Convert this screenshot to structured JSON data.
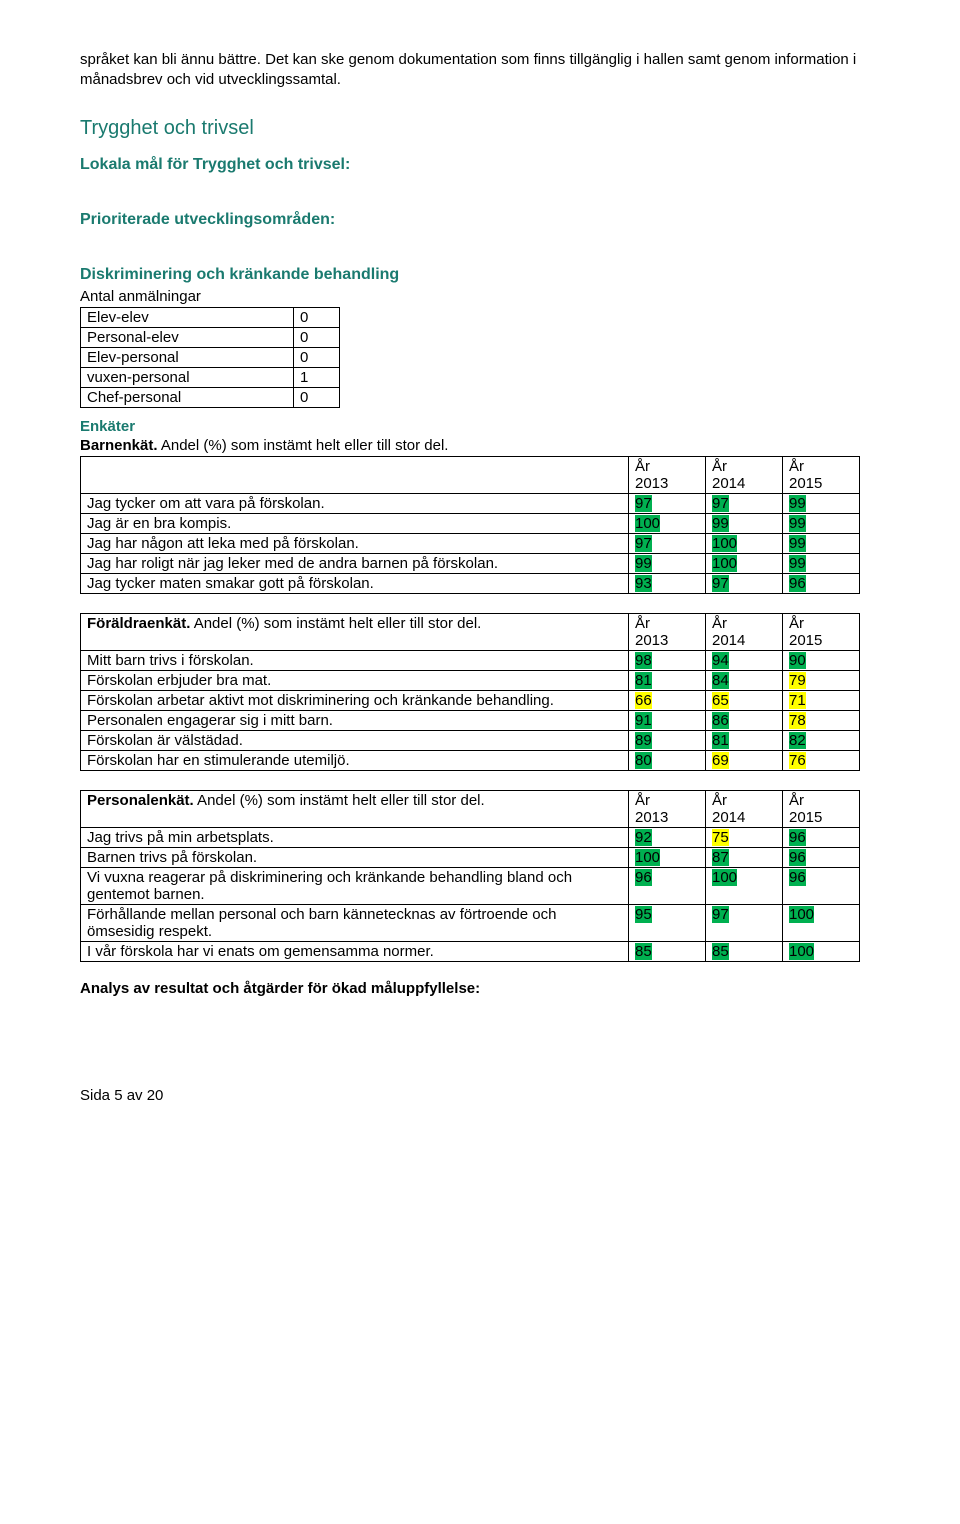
{
  "intro": {
    "p1": "språket kan bli ännu bättre. Det kan ske genom dokumentation som finns tillgänglig i hallen samt genom information i månadsbrev och vid utvecklingssamtal."
  },
  "heading_trygghet": "Trygghet och trivsel",
  "subheading_lokala": "Lokala mål för Trygghet och trivsel:",
  "subheading_prioriterade": "Prioriterade utvecklingsområden:",
  "subheading_diskriminering": "Diskriminering och kränkande behandling",
  "label_anmalningar": "Antal anmälningar",
  "anmalningar": {
    "rows": [
      {
        "label": "Elev-elev",
        "value": "0"
      },
      {
        "label": "Personal-elev",
        "value": "0"
      },
      {
        "label": "Elev-personal",
        "value": "0"
      },
      {
        "label": "vuxen-personal",
        "value": "1"
      },
      {
        "label": "Chef-personal",
        "value": "0"
      }
    ]
  },
  "subheading_enkater": "Enkäter",
  "years": {
    "y1": "År\n2013",
    "y2": "År\n2014",
    "y3": "År\n2015"
  },
  "barnenkat": {
    "title_bold": "Barnenkät.",
    "title_rest": " Andel (%) som instämt helt eller till stor del.",
    "rows": [
      {
        "label": " Jag tycker om att vara på förskolan.",
        "v": [
          "97",
          "97",
          "99"
        ],
        "hl": [
          "hl-green",
          "hl-green",
          "hl-green"
        ]
      },
      {
        "label": "Jag är en bra kompis.",
        "v": [
          "100",
          "99",
          "99"
        ],
        "hl": [
          "hl-green",
          "hl-green",
          "hl-green"
        ]
      },
      {
        "label": "Jag har någon att leka med på förskolan.",
        "v": [
          "97",
          "100",
          "99"
        ],
        "hl": [
          "hl-green",
          "hl-green",
          "hl-green"
        ]
      },
      {
        "label": "  Jag har roligt när jag leker med de andra barnen på förskolan.",
        "v": [
          "99",
          "100",
          "99"
        ],
        "hl": [
          "hl-green",
          "hl-green",
          "hl-green"
        ]
      },
      {
        "label": "  Jag tycker maten smakar gott på förskolan.",
        "v": [
          "93",
          "97",
          "96"
        ],
        "hl": [
          "hl-green",
          "hl-green",
          "hl-green"
        ]
      }
    ]
  },
  "foraldraenkat": {
    "title_bold": "Föräldraenkät.",
    "title_rest": " Andel (%) som instämt helt eller till stor del.",
    "rows": [
      {
        "label": " Mitt barn trivs i förskolan.",
        "v": [
          "98",
          "94",
          "90"
        ],
        "hl": [
          "hl-green",
          "hl-green",
          "hl-green"
        ]
      },
      {
        "label": " Förskolan erbjuder bra mat.",
        "v": [
          "81",
          "84",
          "79"
        ],
        "hl": [
          "hl-green",
          "hl-green",
          "hl-yellow"
        ]
      },
      {
        "label": " Förskolan arbetar aktivt mot diskriminering och kränkande behandling.",
        "v": [
          "66",
          "65",
          "71"
        ],
        "hl": [
          "hl-yellow",
          "hl-yellow",
          "hl-yellow"
        ]
      },
      {
        "label": " Personalen engagerar sig i mitt barn.",
        "v": [
          "91",
          "86",
          "78"
        ],
        "hl": [
          "hl-green",
          "hl-green",
          "hl-yellow"
        ]
      },
      {
        "label": " Förskolan är välstädad.",
        "v": [
          "89",
          "81",
          "82"
        ],
        "hl": [
          "hl-green",
          "hl-green",
          "hl-green"
        ]
      },
      {
        "label": " Förskolan har en stimulerande utemiljö.",
        "v": [
          "80",
          "69",
          "76"
        ],
        "hl": [
          "hl-green",
          "hl-yellow",
          "hl-yellow"
        ]
      }
    ]
  },
  "personalenkat": {
    "title_bold": "Personalenkät.",
    "title_rest": " Andel (%) som instämt helt eller till stor del.",
    "rows": [
      {
        "label": "Jag trivs på min arbetsplats.",
        "v": [
          "92",
          "75",
          "96"
        ],
        "hl": [
          "hl-green",
          "hl-yellow",
          "hl-green"
        ]
      },
      {
        "label": " Barnen trivs på förskolan.",
        "v": [
          "100",
          "87",
          "96"
        ],
        "hl": [
          "hl-green",
          "hl-green",
          "hl-green"
        ]
      },
      {
        "label": " Vi vuxna reagerar på diskriminering och kränkande behandling bland och gentemot barnen.",
        "v": [
          "96",
          "100",
          "96"
        ],
        "hl": [
          "hl-green",
          "hl-green",
          "hl-green"
        ]
      },
      {
        "label": " Förhållande mellan personal och barn kännetecknas av förtroende och ömsesidig respekt.",
        "v": [
          "95",
          "97",
          "100"
        ],
        "hl": [
          "hl-green",
          "hl-green",
          "hl-green"
        ]
      },
      {
        "label": "I vår förskola har vi enats om gemensamma normer.",
        "v": [
          "85",
          "85",
          "100"
        ],
        "hl": [
          "hl-green",
          "hl-green",
          "hl-green"
        ]
      }
    ]
  },
  "analys_heading": "Analys av resultat och åtgärder för ökad måluppfyllelse:",
  "footer": "Sida 5 av 20"
}
